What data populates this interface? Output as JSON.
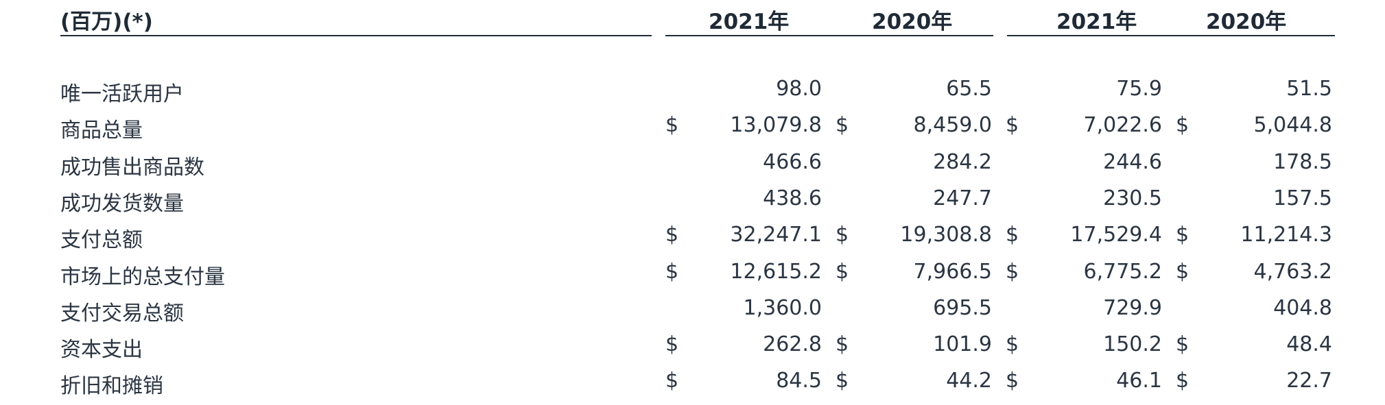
{
  "header": {
    "unit_label": "(百万)(*)",
    "columns": [
      "2021年",
      "2020年",
      "2021年",
      "2020年"
    ]
  },
  "currency_symbol": "$",
  "rows": [
    {
      "label": "唯一活跃用户",
      "currency": [
        false,
        false,
        false,
        false
      ],
      "values": [
        "98.0",
        "65.5",
        "75.9",
        "51.5"
      ]
    },
    {
      "label": "商品总量",
      "currency": [
        true,
        true,
        true,
        true
      ],
      "values": [
        "13,079.8",
        "8,459.0",
        "7,022.6",
        "5,044.8"
      ]
    },
    {
      "label": "成功售出商品数",
      "currency": [
        false,
        false,
        false,
        false
      ],
      "values": [
        "466.6",
        "284.2",
        "244.6",
        "178.5"
      ]
    },
    {
      "label": "成功发货数量",
      "currency": [
        false,
        false,
        false,
        false
      ],
      "values": [
        "438.6",
        "247.7",
        "230.5",
        "157.5"
      ]
    },
    {
      "label": "支付总额",
      "currency": [
        true,
        true,
        true,
        true
      ],
      "values": [
        "32,247.1",
        "19,308.8",
        "17,529.4",
        "11,214.3"
      ]
    },
    {
      "label": "市场上的总支付量",
      "currency": [
        true,
        true,
        true,
        true
      ],
      "values": [
        "12,615.2",
        "7,966.5",
        "6,775.2",
        "4,763.2"
      ]
    },
    {
      "label": "支付交易总额",
      "currency": [
        false,
        false,
        false,
        false
      ],
      "values": [
        "1,360.0",
        "695.5",
        "729.9",
        "404.8"
      ]
    },
    {
      "label": "资本支出",
      "currency": [
        true,
        true,
        true,
        true
      ],
      "values": [
        "262.8",
        "101.9",
        "150.2",
        "48.4"
      ]
    },
    {
      "label": "折旧和摊销",
      "currency": [
        true,
        true,
        true,
        true
      ],
      "values": [
        "84.5",
        "44.2",
        "46.1",
        "22.7"
      ]
    }
  ]
}
